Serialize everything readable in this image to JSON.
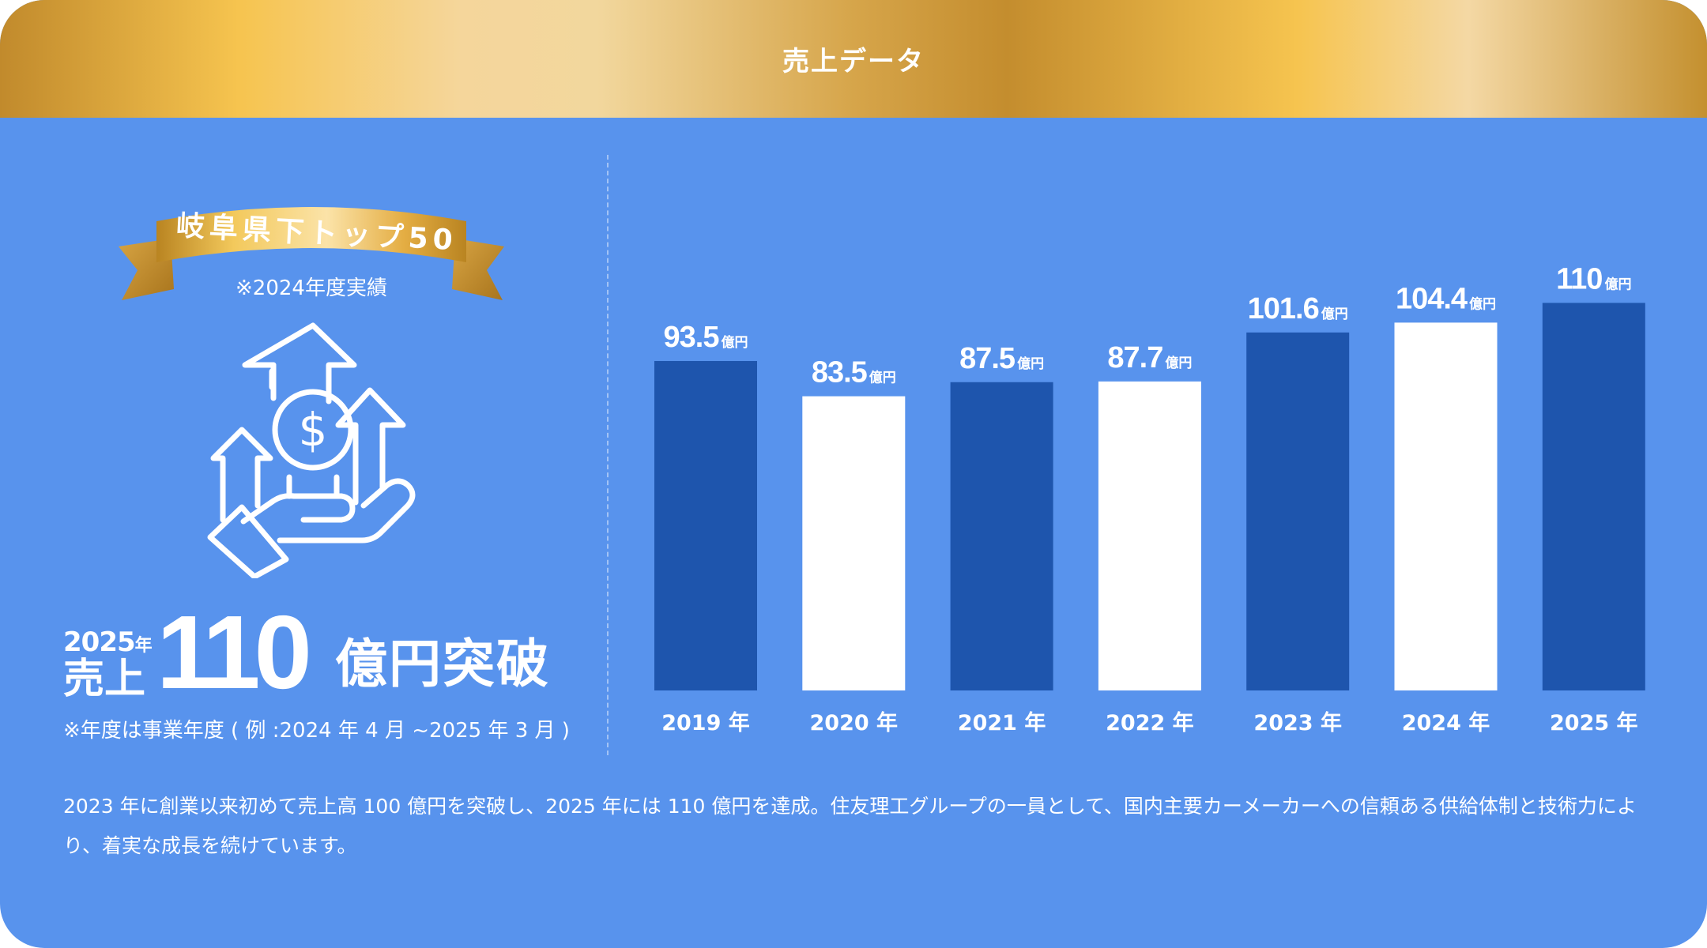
{
  "header": {
    "title": "売上データ"
  },
  "badge": {
    "title": "岐阜県下トップ50",
    "subtitle": "※2024年度実績"
  },
  "headline": {
    "year": "2025",
    "year_unit": "年",
    "label": "売上",
    "number": "110",
    "unit": "億円突破"
  },
  "note": "※年度は事業年度 ( 例 :2024 年 4 月 ~2025 年 3 月 )",
  "icon": "money-hand-growth-arrows-icon",
  "colors": {
    "background": "#5893ed",
    "bar_dark": "#1e55ad",
    "bar_light": "#ffffff",
    "header_gold": "#d6a54a"
  },
  "chart_data": {
    "type": "bar",
    "categories": [
      "2019 年",
      "2020 年",
      "2021 年",
      "2022 年",
      "2023 年",
      "2024 年",
      "2025 年"
    ],
    "values": [
      93.5,
      83.5,
      87.5,
      87.7,
      101.6,
      104.4,
      110
    ],
    "value_labels": [
      "93.5",
      "83.5",
      "87.5",
      "87.7",
      "101.6",
      "104.4",
      "110"
    ],
    "unit": "億円",
    "bar_colors": [
      "#1e55ad",
      "#ffffff",
      "#1e55ad",
      "#ffffff",
      "#1e55ad",
      "#ffffff",
      "#1e55ad"
    ],
    "title": "",
    "xlabel": "",
    "ylabel": "",
    "grid": false
  },
  "description": "2023 年に創業以来初めて売上高 100 億円を突破し、2025 年には 110 億円を達成。住友理工グループの一員として、国内主要カーメーカーへの信頼ある供給体制と技術力により、着実な成長を続けています。"
}
